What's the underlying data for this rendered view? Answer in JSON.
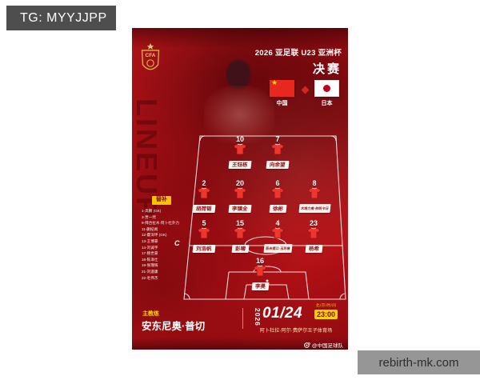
{
  "overlays": {
    "tg": "TG: MYYJJPP",
    "site": "rebirth-mk.com"
  },
  "poster": {
    "side_text": "LINEUP",
    "logo_text": "CFA",
    "header": {
      "title": "2026 亚足联 U23 亚洲杯",
      "stage": "决赛"
    },
    "teams": {
      "home": "中国",
      "away": "日本"
    },
    "captain_mark": "C",
    "formation": {
      "rows": [
        [
          {
            "number": "10",
            "name": "王钰栋"
          },
          {
            "number": "7",
            "name": "向余望"
          }
        ],
        [
          {
            "number": "2",
            "name": "胡荷韬"
          },
          {
            "number": "20",
            "name": "李镇全"
          },
          {
            "number": "6",
            "name": "徐彬"
          },
          {
            "number": "8",
            "name": "木塔力甫·依明卡日"
          }
        ],
        [
          {
            "number": "5",
            "name": "刘浩帆",
            "captain": true
          },
          {
            "number": "15",
            "name": "彭啸"
          },
          {
            "number": "4",
            "name": "吾米提江·玉苏普"
          },
          {
            "number": "23",
            "name": "杨希"
          }
        ],
        [
          {
            "number": "16",
            "name": "李昊"
          }
        ]
      ]
    },
    "substitutes": {
      "label": "替补",
      "items": [
        "1-高鹏 (GK)",
        "3-贾一然",
        "9-拜合拉木·阿卜杜外力",
        "11-蒯纪闻",
        "12-霍深坪 (GK)",
        "13-王博豪",
        "14-刘诚宇",
        "17-鲍世豪",
        "18-陈泽仕",
        "19-张瑾辉",
        "21-刘遥康",
        "22-毛伟杰"
      ]
    },
    "coach": {
      "label": "主教练",
      "name": "安东尼奥·普切"
    },
    "schedule": {
      "year": "2026",
      "date": "01/24",
      "timezone": "北/京/时/间",
      "time": "23:00",
      "venue": "阿卜杜拉·阿尔·费萨尔王子体育场"
    },
    "footer": {
      "social": "@中国足球队"
    },
    "colors": {
      "accent_yellow": "#ffd200",
      "deep_red": "#8e1116",
      "shirt_red": "#ee372a",
      "overlay_gray": "#4e4e4e"
    }
  }
}
